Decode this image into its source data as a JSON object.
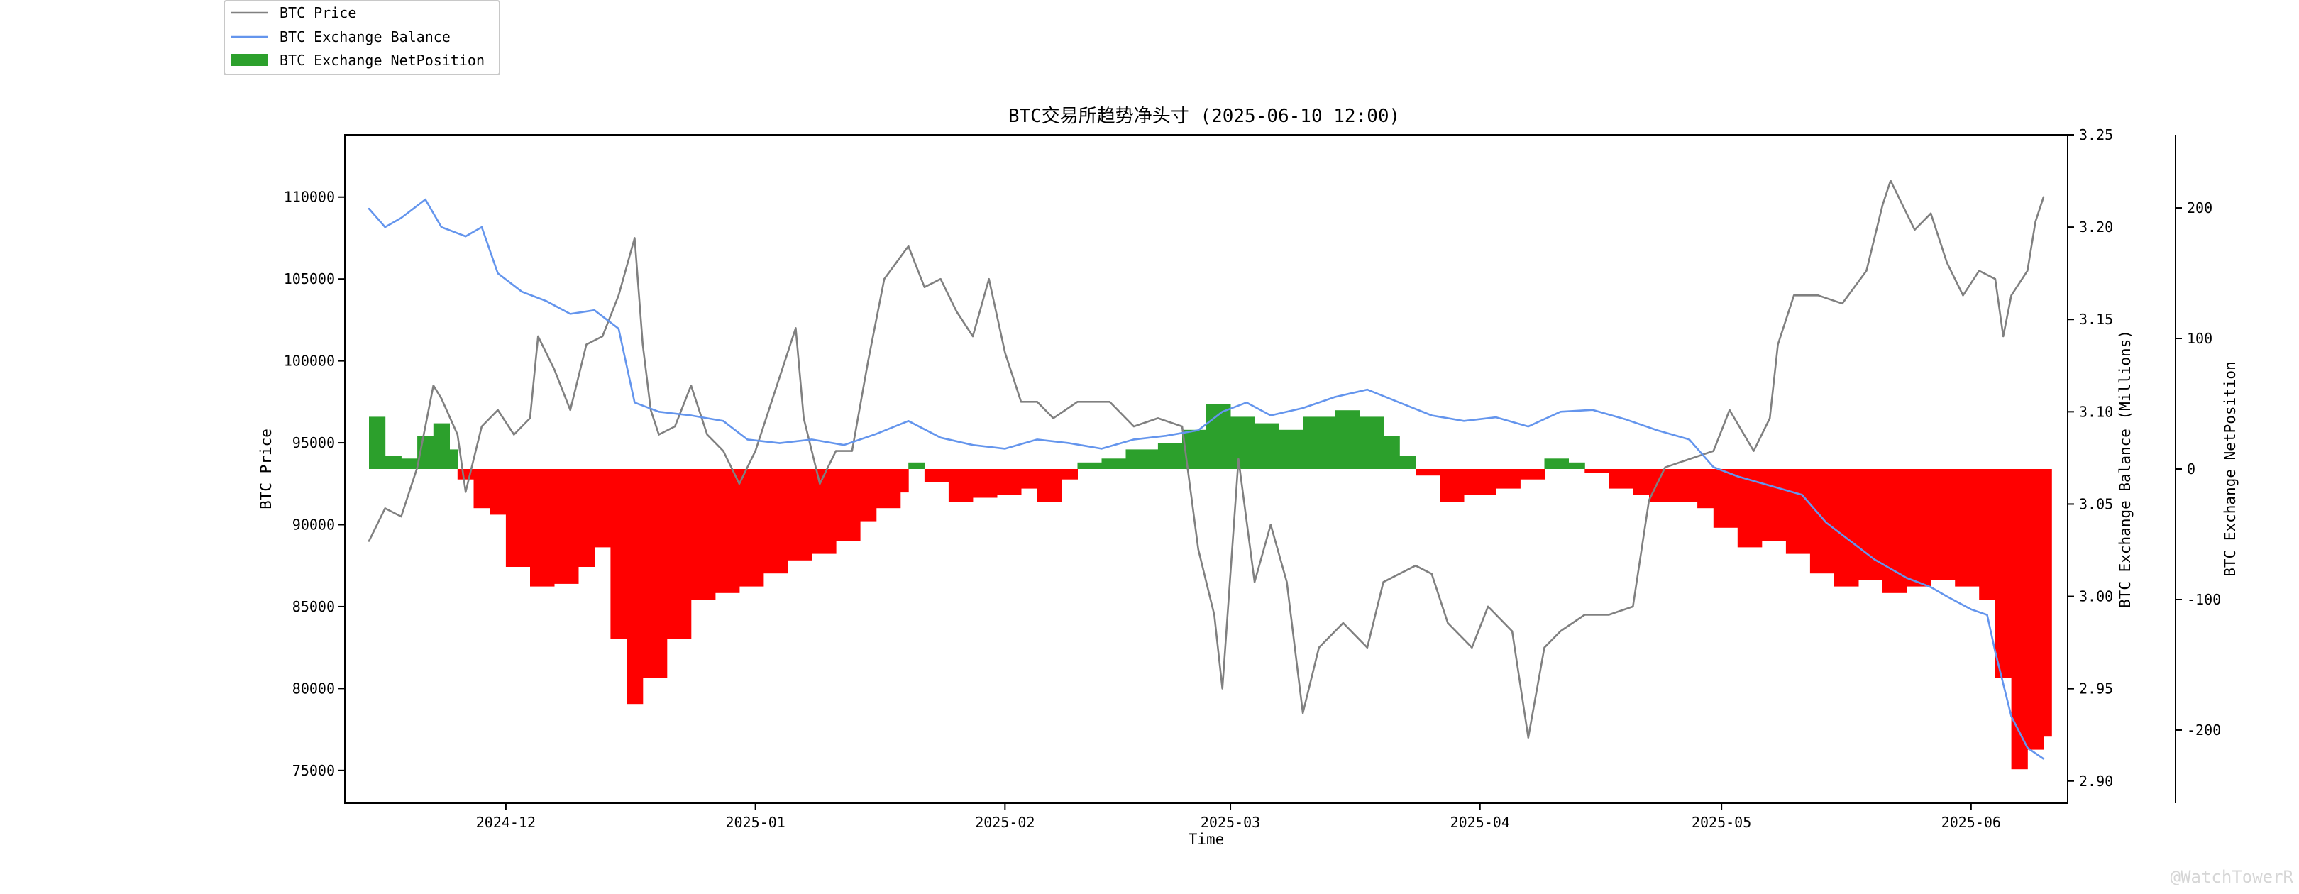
{
  "chart_data": {
    "type": "line",
    "title": "BTC交易所趋势净头寸 (2025-06-10 12:00)",
    "xlabel": "Time",
    "ylabel_left": "BTC Price",
    "ylabel_right1": "BTC Exchange Balance (Millions)",
    "ylabel_right2": "BTC Exchange NetPosition",
    "legend_position": "top-left (outside plot)",
    "grid": false,
    "x_range": [
      "2024-11-11",
      "2025-06-13"
    ],
    "x_ticks": [
      "2024-12",
      "2025-01",
      "2025-02",
      "2025-03",
      "2025-04",
      "2025-05",
      "2025-06"
    ],
    "y_left_range": [
      73000,
      113800
    ],
    "y_left_ticks": [
      "75000",
      "80000",
      "85000",
      "90000",
      "95000",
      "100000",
      "105000",
      "110000"
    ],
    "y_right1_range": [
      2.888,
      3.25
    ],
    "y_right1_ticks": [
      "2.90",
      "2.95",
      "3.00",
      "3.05",
      "3.10",
      "3.15",
      "3.20",
      "3.25"
    ],
    "y_right2_range": [
      -256,
      256
    ],
    "y_right2_ticks": [
      "-200",
      "-100",
      "0",
      "100",
      "200"
    ],
    "colors": {
      "price": "#808080",
      "balance": "#6495ed",
      "net_positive": "#2ca02c",
      "net_negative": "#ff0000"
    },
    "series": [
      {
        "name": "BTC Price",
        "axis": "left",
        "points": [
          [
            "2024-11-14",
            89000
          ],
          [
            "2024-11-16",
            91000
          ],
          [
            "2024-11-18",
            90500
          ],
          [
            "2024-11-20",
            93500
          ],
          [
            "2024-11-22",
            98500
          ],
          [
            "2024-11-23",
            97700
          ],
          [
            "2024-11-25",
            95500
          ],
          [
            "2024-11-26",
            92000
          ],
          [
            "2024-11-28",
            96000
          ],
          [
            "2024-11-30",
            97000
          ],
          [
            "2024-12-02",
            95500
          ],
          [
            "2024-12-04",
            96500
          ],
          [
            "2024-12-05",
            101500
          ],
          [
            "2024-12-07",
            99500
          ],
          [
            "2024-12-09",
            97000
          ],
          [
            "2024-12-11",
            101000
          ],
          [
            "2024-12-13",
            101500
          ],
          [
            "2024-12-15",
            104000
          ],
          [
            "2024-12-17",
            107500
          ],
          [
            "2024-12-18",
            101000
          ],
          [
            "2024-12-19",
            97000
          ],
          [
            "2024-12-20",
            95500
          ],
          [
            "2024-12-22",
            96000
          ],
          [
            "2024-12-24",
            98500
          ],
          [
            "2024-12-26",
            95500
          ],
          [
            "2024-12-28",
            94500
          ],
          [
            "2024-12-30",
            92500
          ],
          [
            "2025-01-01",
            94500
          ],
          [
            "2025-01-03",
            97500
          ],
          [
            "2025-01-06",
            102000
          ],
          [
            "2025-01-07",
            96500
          ],
          [
            "2025-01-09",
            92500
          ],
          [
            "2025-01-11",
            94500
          ],
          [
            "2025-01-13",
            94500
          ],
          [
            "2025-01-15",
            100000
          ],
          [
            "2025-01-17",
            105000
          ],
          [
            "2025-01-20",
            107000
          ],
          [
            "2025-01-22",
            104500
          ],
          [
            "2025-01-24",
            105000
          ],
          [
            "2025-01-26",
            103000
          ],
          [
            "2025-01-28",
            101500
          ],
          [
            "2025-01-30",
            105000
          ],
          [
            "2025-02-01",
            100500
          ],
          [
            "2025-02-03",
            97500
          ],
          [
            "2025-02-05",
            97500
          ],
          [
            "2025-02-07",
            96500
          ],
          [
            "2025-02-10",
            97500
          ],
          [
            "2025-02-14",
            97500
          ],
          [
            "2025-02-17",
            96000
          ],
          [
            "2025-02-20",
            96500
          ],
          [
            "2025-02-23",
            96000
          ],
          [
            "2025-02-25",
            88500
          ],
          [
            "2025-02-27",
            84500
          ],
          [
            "2025-02-28",
            80000
          ],
          [
            "2025-03-02",
            94000
          ],
          [
            "2025-03-04",
            86500
          ],
          [
            "2025-03-06",
            90000
          ],
          [
            "2025-03-08",
            86500
          ],
          [
            "2025-03-10",
            78500
          ],
          [
            "2025-03-12",
            82500
          ],
          [
            "2025-03-15",
            84000
          ],
          [
            "2025-03-18",
            82500
          ],
          [
            "2025-03-20",
            86500
          ],
          [
            "2025-03-24",
            87500
          ],
          [
            "2025-03-26",
            87000
          ],
          [
            "2025-03-28",
            84000
          ],
          [
            "2025-03-31",
            82500
          ],
          [
            "2025-04-02",
            85000
          ],
          [
            "2025-04-05",
            83500
          ],
          [
            "2025-04-07",
            77000
          ],
          [
            "2025-04-09",
            82500
          ],
          [
            "2025-04-11",
            83500
          ],
          [
            "2025-04-14",
            84500
          ],
          [
            "2025-04-17",
            84500
          ],
          [
            "2025-04-20",
            85000
          ],
          [
            "2025-04-22",
            91500
          ],
          [
            "2025-04-24",
            93500
          ],
          [
            "2025-04-27",
            94000
          ],
          [
            "2025-04-30",
            94500
          ],
          [
            "2025-05-02",
            97000
          ],
          [
            "2025-05-05",
            94500
          ],
          [
            "2025-05-07",
            96500
          ],
          [
            "2025-05-08",
            101000
          ],
          [
            "2025-05-10",
            104000
          ],
          [
            "2025-05-13",
            104000
          ],
          [
            "2025-05-16",
            103500
          ],
          [
            "2025-05-19",
            105500
          ],
          [
            "2025-05-21",
            109500
          ],
          [
            "2025-05-22",
            111000
          ],
          [
            "2025-05-25",
            108000
          ],
          [
            "2025-05-27",
            109000
          ],
          [
            "2025-05-29",
            106000
          ],
          [
            "2025-05-31",
            104000
          ],
          [
            "2025-06-02",
            105500
          ],
          [
            "2025-06-04",
            105000
          ],
          [
            "2025-06-05",
            101500
          ],
          [
            "2025-06-06",
            104000
          ],
          [
            "2025-06-08",
            105500
          ],
          [
            "2025-06-09",
            108500
          ],
          [
            "2025-06-10",
            110000
          ]
        ]
      },
      {
        "name": "BTC Exchange Balance",
        "axis": "right1",
        "points": [
          [
            "2024-11-14",
            3.21
          ],
          [
            "2024-11-16",
            3.2
          ],
          [
            "2024-11-18",
            3.205
          ],
          [
            "2024-11-21",
            3.215
          ],
          [
            "2024-11-23",
            3.2
          ],
          [
            "2024-11-26",
            3.195
          ],
          [
            "2024-11-28",
            3.2
          ],
          [
            "2024-11-30",
            3.175
          ],
          [
            "2024-12-03",
            3.165
          ],
          [
            "2024-12-06",
            3.16
          ],
          [
            "2024-12-09",
            3.153
          ],
          [
            "2024-12-12",
            3.155
          ],
          [
            "2024-12-15",
            3.145
          ],
          [
            "2024-12-17",
            3.105
          ],
          [
            "2024-12-20",
            3.1
          ],
          [
            "2024-12-24",
            3.098
          ],
          [
            "2024-12-28",
            3.095
          ],
          [
            "2024-12-31",
            3.085
          ],
          [
            "2025-01-04",
            3.083
          ],
          [
            "2025-01-08",
            3.085
          ],
          [
            "2025-01-12",
            3.082
          ],
          [
            "2025-01-16",
            3.088
          ],
          [
            "2025-01-20",
            3.095
          ],
          [
            "2025-01-24",
            3.086
          ],
          [
            "2025-01-28",
            3.082
          ],
          [
            "2025-02-01",
            3.08
          ],
          [
            "2025-02-05",
            3.085
          ],
          [
            "2025-02-09",
            3.083
          ],
          [
            "2025-02-13",
            3.08
          ],
          [
            "2025-02-17",
            3.085
          ],
          [
            "2025-02-21",
            3.087
          ],
          [
            "2025-02-25",
            3.09
          ],
          [
            "2025-02-28",
            3.1
          ],
          [
            "2025-03-03",
            3.105
          ],
          [
            "2025-03-06",
            3.098
          ],
          [
            "2025-03-10",
            3.102
          ],
          [
            "2025-03-14",
            3.108
          ],
          [
            "2025-03-18",
            3.112
          ],
          [
            "2025-03-22",
            3.105
          ],
          [
            "2025-03-26",
            3.098
          ],
          [
            "2025-03-30",
            3.095
          ],
          [
            "2025-04-03",
            3.097
          ],
          [
            "2025-04-07",
            3.092
          ],
          [
            "2025-04-11",
            3.1
          ],
          [
            "2025-04-15",
            3.101
          ],
          [
            "2025-04-19",
            3.096
          ],
          [
            "2025-04-23",
            3.09
          ],
          [
            "2025-04-27",
            3.085
          ],
          [
            "2025-04-30",
            3.07
          ],
          [
            "2025-05-03",
            3.065
          ],
          [
            "2025-05-07",
            3.06
          ],
          [
            "2025-05-11",
            3.055
          ],
          [
            "2025-05-14",
            3.04
          ],
          [
            "2025-05-17",
            3.03
          ],
          [
            "2025-05-20",
            3.02
          ],
          [
            "2025-05-24",
            3.01
          ],
          [
            "2025-05-27",
            3.005
          ],
          [
            "2025-05-29",
            3.0
          ],
          [
            "2025-06-01",
            2.993
          ],
          [
            "2025-06-03",
            2.99
          ],
          [
            "2025-06-04",
            2.97
          ],
          [
            "2025-06-06",
            2.935
          ],
          [
            "2025-06-08",
            2.918
          ],
          [
            "2025-06-10",
            2.912
          ]
        ]
      },
      {
        "name": "BTC Exchange NetPosition",
        "axis": "right2",
        "style": "bar",
        "points": [
          [
            "2024-11-14",
            40
          ],
          [
            "2024-11-16",
            10
          ],
          [
            "2024-11-18",
            8
          ],
          [
            "2024-11-20",
            25
          ],
          [
            "2024-11-22",
            35
          ],
          [
            "2024-11-24",
            15
          ],
          [
            "2024-11-25",
            -8
          ],
          [
            "2024-11-27",
            -30
          ],
          [
            "2024-11-29",
            -35
          ],
          [
            "2024-12-01",
            -75
          ],
          [
            "2024-12-04",
            -90
          ],
          [
            "2024-12-07",
            -88
          ],
          [
            "2024-12-10",
            -75
          ],
          [
            "2024-12-12",
            -60
          ],
          [
            "2024-12-14",
            -130
          ],
          [
            "2024-12-16",
            -180
          ],
          [
            "2024-12-18",
            -160
          ],
          [
            "2024-12-21",
            -130
          ],
          [
            "2024-12-24",
            -100
          ],
          [
            "2024-12-27",
            -95
          ],
          [
            "2024-12-30",
            -90
          ],
          [
            "2025-01-02",
            -80
          ],
          [
            "2025-01-05",
            -70
          ],
          [
            "2025-01-08",
            -65
          ],
          [
            "2025-01-11",
            -55
          ],
          [
            "2025-01-14",
            -40
          ],
          [
            "2025-01-16",
            -30
          ],
          [
            "2025-01-19",
            -18
          ],
          [
            "2025-01-20",
            5
          ],
          [
            "2025-01-22",
            -10
          ],
          [
            "2025-01-25",
            -25
          ],
          [
            "2025-01-28",
            -22
          ],
          [
            "2025-01-31",
            -20
          ],
          [
            "2025-02-03",
            -15
          ],
          [
            "2025-02-05",
            -25
          ],
          [
            "2025-02-08",
            -8
          ],
          [
            "2025-02-10",
            5
          ],
          [
            "2025-02-13",
            8
          ],
          [
            "2025-02-16",
            15
          ],
          [
            "2025-02-20",
            20
          ],
          [
            "2025-02-23",
            30
          ],
          [
            "2025-02-26",
            50
          ],
          [
            "2025-03-01",
            40
          ],
          [
            "2025-03-04",
            35
          ],
          [
            "2025-03-07",
            30
          ],
          [
            "2025-03-10",
            40
          ],
          [
            "2025-03-14",
            45
          ],
          [
            "2025-03-17",
            40
          ],
          [
            "2025-03-20",
            25
          ],
          [
            "2025-03-22",
            10
          ],
          [
            "2025-03-24",
            -5
          ],
          [
            "2025-03-27",
            -25
          ],
          [
            "2025-03-30",
            -20
          ],
          [
            "2025-04-03",
            -15
          ],
          [
            "2025-04-06",
            -8
          ],
          [
            "2025-04-09",
            8
          ],
          [
            "2025-04-12",
            5
          ],
          [
            "2025-04-14",
            -3
          ],
          [
            "2025-04-17",
            -15
          ],
          [
            "2025-04-20",
            -20
          ],
          [
            "2025-04-22",
            -25
          ],
          [
            "2025-04-25",
            -25
          ],
          [
            "2025-04-28",
            -30
          ],
          [
            "2025-04-30",
            -45
          ],
          [
            "2025-05-03",
            -60
          ],
          [
            "2025-05-06",
            -55
          ],
          [
            "2025-05-09",
            -65
          ],
          [
            "2025-05-12",
            -80
          ],
          [
            "2025-05-15",
            -90
          ],
          [
            "2025-05-18",
            -85
          ],
          [
            "2025-05-21",
            -95
          ],
          [
            "2025-05-24",
            -90
          ],
          [
            "2025-05-27",
            -85
          ],
          [
            "2025-05-30",
            -90
          ],
          [
            "2025-06-02",
            -100
          ],
          [
            "2025-06-04",
            -160
          ],
          [
            "2025-06-06",
            -230
          ],
          [
            "2025-06-08",
            -215
          ],
          [
            "2025-06-10",
            -205
          ]
        ]
      }
    ]
  },
  "legend": {
    "items": [
      {
        "label": "BTC Price",
        "swatch": "line",
        "color": "#808080"
      },
      {
        "label": "BTC Exchange Balance",
        "swatch": "line",
        "color": "#6495ed"
      },
      {
        "label": "BTC Exchange NetPosition",
        "swatch": "bar",
        "color": "#2ca02c"
      }
    ]
  },
  "watermark": "@WatchTowerR"
}
